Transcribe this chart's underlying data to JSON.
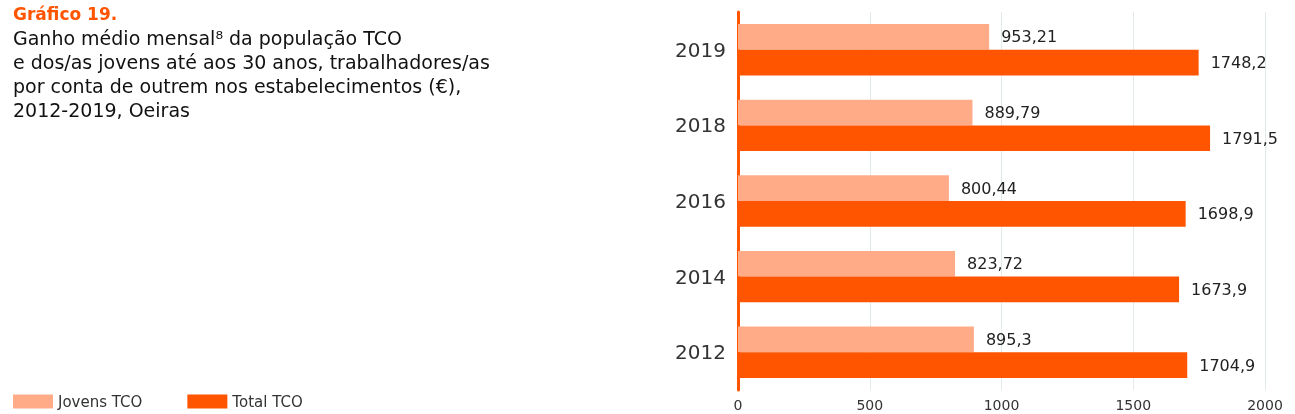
{
  "chart_data": {
    "type": "bar",
    "orientation": "horizontal",
    "title": "Gráfico 19.",
    "subtitle": "Ganho médio mensal⁸ da população TCO\ne dos/as jovens até aos 30 anos, trabalhadores/as\npor conta de outrem nos estabelecimentos (€),\n2012-2019, Oeiras",
    "categories": [
      "2019",
      "2018",
      "2016",
      "2014",
      "2012"
    ],
    "series": [
      {
        "name": "Jovens TCO",
        "color": "#ffab88",
        "values": [
          953.21,
          889.79,
          800.44,
          823.72,
          895.3
        ],
        "value_labels": [
          "953,21",
          "889,79",
          "800,44",
          "823,72",
          "895,3"
        ]
      },
      {
        "name": "Total TCO",
        "color": "#ff5500",
        "values": [
          1748.2,
          1791.5,
          1698.9,
          1673.9,
          1704.9
        ],
        "value_labels": [
          "1748,2",
          "1791,5",
          "1698,9",
          "1673,9",
          "1704,9"
        ]
      }
    ],
    "xlim": [
      0,
      2000
    ],
    "xticks": [
      0,
      500,
      1000,
      1500,
      2000
    ],
    "grid": "x",
    "legend": "bottom left"
  }
}
